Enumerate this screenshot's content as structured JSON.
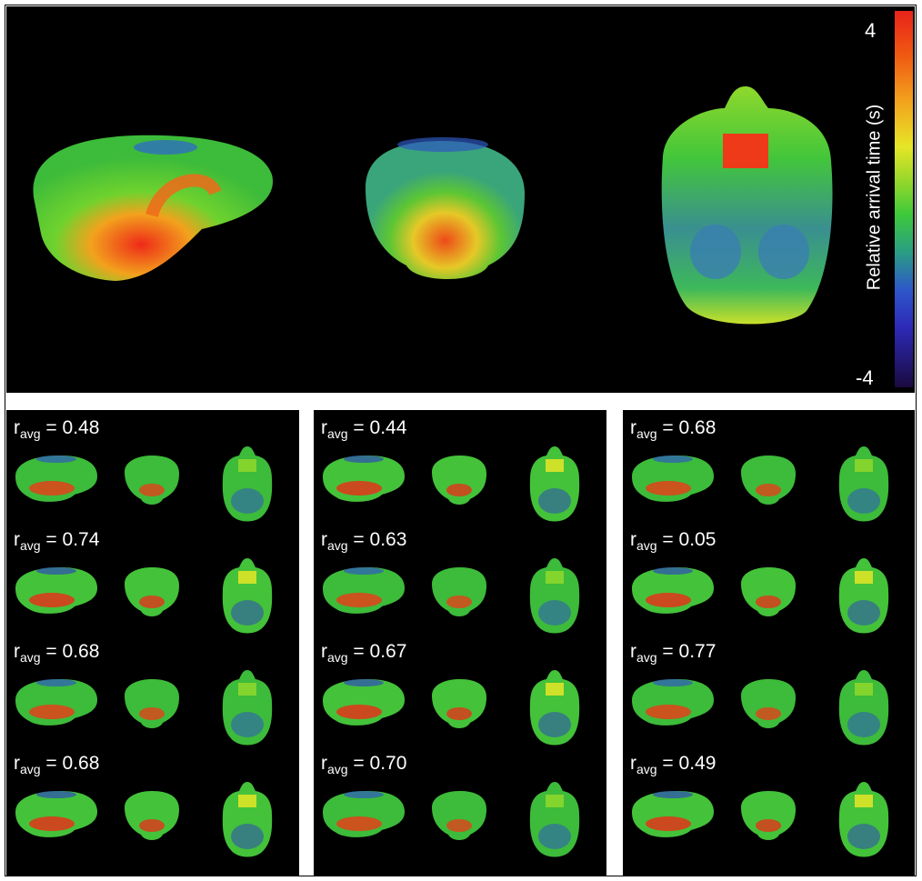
{
  "colorbar": {
    "title": "Relative arrival time (s)",
    "max_label": "4",
    "min_label": "-4",
    "colors": [
      "#e8231a",
      "#f2a21d",
      "#e6e627",
      "#3ec93a",
      "#2a9e82",
      "#2d58c9",
      "#1a0a40"
    ]
  },
  "panels": [
    {
      "cells": [
        {
          "r_prefix": "r",
          "r_sub": "avg",
          "r_value": "= 0.48"
        },
        {
          "r_prefix": "r",
          "r_sub": "avg",
          "r_value": "= 0.74"
        },
        {
          "r_prefix": "r",
          "r_sub": "avg",
          "r_value": "= 0.68"
        },
        {
          "r_prefix": "r",
          "r_sub": "avg",
          "r_value": "= 0.68"
        }
      ]
    },
    {
      "cells": [
        {
          "r_prefix": "r",
          "r_sub": "avg",
          "r_value": "= 0.44"
        },
        {
          "r_prefix": "r",
          "r_sub": "avg",
          "r_value": "= 0.63"
        },
        {
          "r_prefix": "r",
          "r_sub": "avg",
          "r_value": "= 0.67"
        },
        {
          "r_prefix": "r",
          "r_sub": "avg",
          "r_value": "= 0.70"
        }
      ]
    },
    {
      "cells": [
        {
          "r_prefix": "r",
          "r_sub": "avg",
          "r_value": "= 0.68"
        },
        {
          "r_prefix": "r",
          "r_sub": "avg",
          "r_value": "= 0.05"
        },
        {
          "r_prefix": "r",
          "r_sub": "avg",
          "r_value": "= 0.77"
        },
        {
          "r_prefix": "r",
          "r_sub": "avg",
          "r_value": "= 0.49"
        }
      ]
    }
  ]
}
